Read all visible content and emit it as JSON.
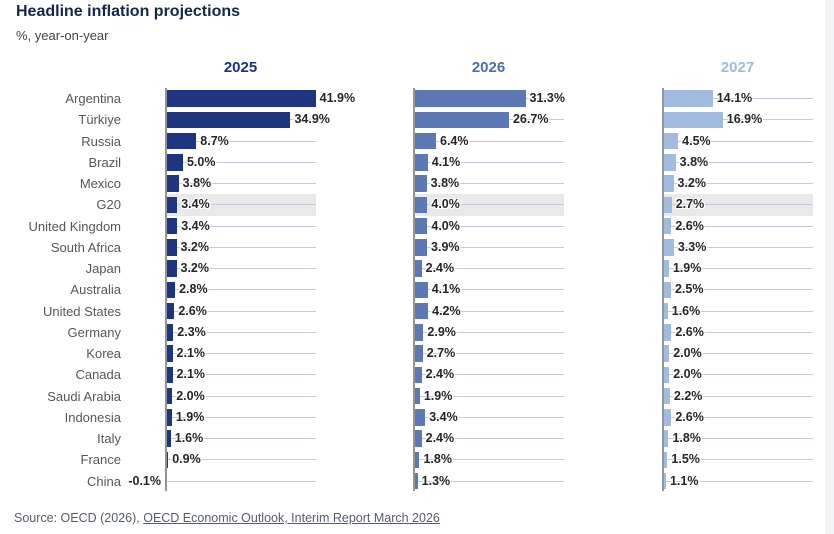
{
  "header": {
    "title": "Headline inflation projections",
    "subtitle": "%, year-on-year"
  },
  "source": {
    "prefix": "Source: OECD (2026), ",
    "link_text": "OECD Economic Outlook, Interim Report March 2026"
  },
  "colors": {
    "bar_colors": [
      "#20357f",
      "#5d79b5",
      "#a2bcdf"
    ],
    "year_label_colors": [
      "#1d3184",
      "#4b6fae",
      "#9fbce1"
    ],
    "highlight_band": "#e9e9e9",
    "leader_line": "#c3cdda",
    "axis_line": "#8f959d",
    "title_color": "#14254e"
  },
  "chart_data": {
    "type": "bar",
    "orientation": "horizontal",
    "title": "Headline inflation projections",
    "subtitle": "%, year-on-year",
    "value_suffix": "%",
    "xlim": [
      0,
      42
    ],
    "grid": false,
    "panels": [
      "2025",
      "2026",
      "2027"
    ],
    "highlight_category": "G20",
    "categories": [
      "Argentina",
      "Türkiye",
      "Russia",
      "Brazil",
      "Mexico",
      "G20",
      "United Kingdom",
      "South Africa",
      "Japan",
      "Australia",
      "United States",
      "Germany",
      "Korea",
      "Canada",
      "Saudi Arabia",
      "Indonesia",
      "Italy",
      "France",
      "China"
    ],
    "series": [
      {
        "name": "2025",
        "values": [
          41.9,
          34.9,
          8.7,
          5.0,
          3.8,
          3.4,
          3.4,
          3.2,
          3.2,
          2.8,
          2.6,
          2.3,
          2.1,
          2.1,
          2.0,
          1.9,
          1.6,
          0.9,
          -0.1
        ]
      },
      {
        "name": "2026",
        "values": [
          31.3,
          26.7,
          6.4,
          4.1,
          3.8,
          4.0,
          4.0,
          3.9,
          2.4,
          4.1,
          4.2,
          2.9,
          2.7,
          2.4,
          1.9,
          3.4,
          2.4,
          1.8,
          1.3
        ]
      },
      {
        "name": "2027",
        "values": [
          14.1,
          16.9,
          4.5,
          3.8,
          3.2,
          2.7,
          2.6,
          3.3,
          1.9,
          2.5,
          1.6,
          2.6,
          2.0,
          2.0,
          2.2,
          2.6,
          1.8,
          1.5,
          1.1
        ]
      }
    ]
  }
}
